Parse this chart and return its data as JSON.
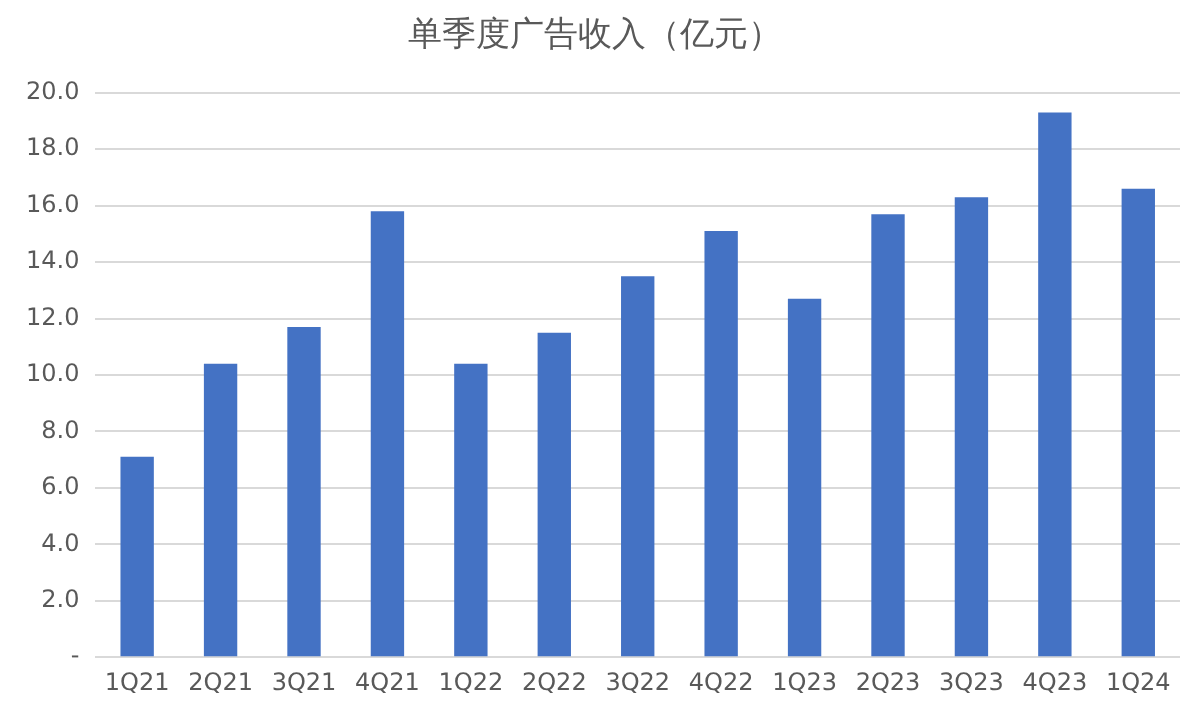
{
  "chart_data": {
    "type": "bar",
    "title": "单季度广告收入（亿元）",
    "categories": [
      "1Q21",
      "2Q21",
      "3Q21",
      "4Q21",
      "1Q22",
      "2Q22",
      "3Q22",
      "4Q22",
      "1Q23",
      "2Q23",
      "3Q23",
      "4Q23",
      "1Q24"
    ],
    "values": [
      7.1,
      10.4,
      11.7,
      15.8,
      10.4,
      11.5,
      13.5,
      15.1,
      12.7,
      15.7,
      16.3,
      19.3,
      16.6
    ],
    "color": "#4472c4",
    "ylim": [
      0,
      20
    ],
    "yticks": [
      {
        "value": 0,
        "label": "-"
      },
      {
        "value": 2,
        "label": "2.0"
      },
      {
        "value": 4,
        "label": "4.0"
      },
      {
        "value": 6,
        "label": "6.0"
      },
      {
        "value": 8,
        "label": "8.0"
      },
      {
        "value": 10,
        "label": "10.0"
      },
      {
        "value": 12,
        "label": "12.0"
      },
      {
        "value": 14,
        "label": "14.0"
      },
      {
        "value": 16,
        "label": "16.0"
      },
      {
        "value": 18,
        "label": "18.0"
      },
      {
        "value": 20,
        "label": "20.0"
      }
    ],
    "grid": "y"
  }
}
